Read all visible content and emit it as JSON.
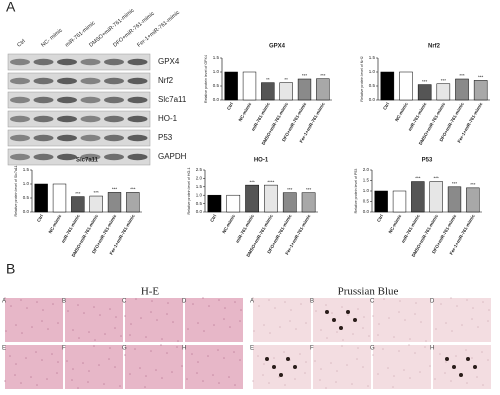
{
  "figure": {
    "panel_a": "A",
    "panel_b": "B",
    "blot": {
      "columns": [
        "Ctrl",
        "NC- mimic",
        "miR-761-mimic",
        "DMSO+miR-761-mimic",
        "DFO+miR-761-mimic",
        "Fer-1+miR-761-mimic"
      ],
      "rows": [
        "GPX4",
        "Nrf2",
        "Slc7a11",
        "HO-1",
        "P53",
        "GAPDH"
      ]
    },
    "histology": {
      "stains": [
        "H-E",
        "Prussian Blue"
      ],
      "tiles": [
        "A",
        "B",
        "C",
        "D",
        "E",
        "F",
        "G",
        "H"
      ]
    }
  },
  "chart_data": [
    {
      "type": "bar",
      "title": "GPX4",
      "y_label": "Relative protein level of GPX4",
      "categories": [
        "Ctrl",
        "NC-mimic",
        "miR-761-mimic",
        "DMSO+miR-761-mimic",
        "DFO+miR-761-mimic",
        "Fer-1+miR-761-mimic"
      ],
      "values": [
        1.0,
        1.0,
        0.62,
        0.62,
        0.75,
        0.76
      ],
      "significance": [
        "**",
        "**",
        "***",
        "***"
      ],
      "colors": [
        "#000000",
        "#ffffff",
        "#555555",
        "#e6e6e6",
        "#8a8a8a",
        "#a8a8a8"
      ],
      "ylim": [
        0,
        1.5
      ],
      "yticks": [
        {
          "value": 0,
          "label": "0.0"
        },
        {
          "value": 0.5,
          "label": "0.5"
        },
        {
          "value": 1,
          "label": "1.0"
        },
        {
          "value": 1.5,
          "label": "1.5"
        }
      ]
    },
    {
      "type": "bar",
      "title": "Nrf2",
      "y_label": "Relative protein level of Nrf2",
      "categories": [
        "Ctrl",
        "NC-mimic",
        "miR-761-mimic",
        "DMSO+miR-761-mimic",
        "DFO+miR-761-mimic",
        "Fer-1+miR-761-mimic"
      ],
      "values": [
        1.0,
        1.0,
        0.55,
        0.58,
        0.75,
        0.7
      ],
      "significance": [
        "***",
        "***",
        "***",
        "***"
      ],
      "colors": [
        "#000000",
        "#ffffff",
        "#555555",
        "#e6e6e6",
        "#8a8a8a",
        "#a8a8a8"
      ],
      "ylim": [
        0,
        1.5
      ],
      "yticks": [
        {
          "value": 0,
          "label": "0.0"
        },
        {
          "value": 0.5,
          "label": "0.5"
        },
        {
          "value": 1,
          "label": "1.0"
        },
        {
          "value": 1.5,
          "label": "1.5"
        }
      ]
    },
    {
      "type": "bar",
      "title": "Slc7a11",
      "y_label": "Relative protein level of Slc7a11",
      "categories": [
        "Ctrl",
        "NC-mimic",
        "miR-761-mimic",
        "DMSO+miR-761-mimic",
        "DFO+miR-761-mimic",
        "Fer-1+miR-761-mimic"
      ],
      "values": [
        1.0,
        1.0,
        0.55,
        0.57,
        0.7,
        0.7
      ],
      "significance": [
        "***",
        "***",
        "***",
        "***"
      ],
      "colors": [
        "#000000",
        "#ffffff",
        "#555555",
        "#e6e6e6",
        "#8a8a8a",
        "#a8a8a8"
      ],
      "ylim": [
        0,
        1.5
      ],
      "yticks": [
        {
          "value": 0,
          "label": "0.0"
        },
        {
          "value": 0.5,
          "label": "0.5"
        },
        {
          "value": 1,
          "label": "1.0"
        },
        {
          "value": 1.5,
          "label": "1.5"
        }
      ]
    },
    {
      "type": "bar",
      "title": "HO-1",
      "y_label": "Relative protein level of HO-1",
      "categories": [
        "Ctrl",
        "NC-mimic",
        "miR-761-mimic",
        "DMSO+miR-761-mimic",
        "DFO+miR-761-mimic",
        "Fer-1+miR-761-mimic"
      ],
      "values": [
        1.0,
        1.0,
        1.6,
        1.6,
        1.15,
        1.15
      ],
      "significance": [
        "***",
        "****",
        "***",
        "***"
      ],
      "colors": [
        "#000000",
        "#ffffff",
        "#555555",
        "#e6e6e6",
        "#8a8a8a",
        "#a8a8a8"
      ],
      "ylim": [
        0,
        2.5
      ],
      "yticks": [
        {
          "value": 0,
          "label": "0.0"
        },
        {
          "value": 0.5,
          "label": "0.5"
        },
        {
          "value": 1,
          "label": "1.0"
        },
        {
          "value": 1.5,
          "label": "1.5"
        },
        {
          "value": 2,
          "label": "2.0"
        },
        {
          "value": 2.5,
          "label": "2.5"
        }
      ]
    },
    {
      "type": "bar",
      "title": "P53",
      "y_label": "Relative protein level of P53",
      "categories": [
        "Ctrl",
        "NC-mimic",
        "miR-761-mimic",
        "DMSO+miR-761-mimic",
        "DFO+miR-761-mimic",
        "Fer-1+miR-761-mimic"
      ],
      "values": [
        1.0,
        1.0,
        1.45,
        1.45,
        1.2,
        1.15
      ],
      "significance": [
        "***",
        "***",
        "***",
        "***"
      ],
      "colors": [
        "#000000",
        "#ffffff",
        "#555555",
        "#e6e6e6",
        "#8a8a8a",
        "#a8a8a8"
      ],
      "ylim": [
        0,
        2
      ],
      "yticks": [
        {
          "value": 0,
          "label": "0.0"
        },
        {
          "value": 0.5,
          "label": "0.5"
        },
        {
          "value": 1,
          "label": "1.0"
        },
        {
          "value": 1.5,
          "label": "1.5"
        },
        {
          "value": 2,
          "label": "2.0"
        }
      ]
    }
  ]
}
